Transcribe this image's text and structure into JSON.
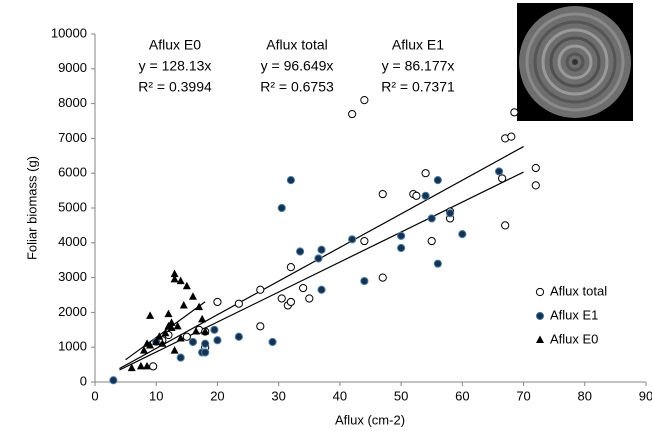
{
  "chart_data": {
    "type": "scatter",
    "x_label": "Aflux (cm-2)",
    "y_label": "Foliar biomass (g)",
    "xlim": [
      0,
      90
    ],
    "xticks": [
      0,
      10,
      20,
      30,
      40,
      50,
      60,
      70,
      80,
      90
    ],
    "ylim": [
      0,
      10000
    ],
    "yticks": [
      0,
      1000,
      2000,
      3000,
      4000,
      5000,
      6000,
      7000,
      8000,
      9000,
      10000
    ],
    "legend": "lower right",
    "series": [
      {
        "name": "Aflux total",
        "marker": "circle-open",
        "color": "#000000",
        "x": [
          9.5,
          11,
          12,
          15,
          17,
          18,
          18,
          20,
          23.5,
          27,
          27,
          30.5,
          31.5,
          32,
          32,
          34,
          35,
          42,
          44,
          44,
          47,
          47,
          52,
          52.5,
          54,
          55,
          58,
          58,
          66.5,
          67,
          67,
          68,
          68.5,
          72,
          72
        ],
        "values": [
          450,
          1200,
          1350,
          1300,
          1500,
          1000,
          1450,
          2300,
          2250,
          2650,
          1600,
          2400,
          2200,
          2300,
          3300,
          2700,
          2400,
          7700,
          8100,
          4050,
          5400,
          3000,
          5400,
          5350,
          6000,
          4050,
          4700,
          4900,
          5850,
          4500,
          7000,
          7050,
          7750,
          6150,
          5650
        ]
      },
      {
        "name": "Aflux E1",
        "marker": "circle-filled",
        "color": "#17324f",
        "x": [
          3,
          10,
          14,
          16,
          17.5,
          18,
          18,
          19.5,
          20,
          23.5,
          29,
          30.5,
          32,
          33.5,
          36.5,
          37,
          37,
          42,
          44,
          50,
          50,
          54,
          55,
          56,
          56,
          58,
          60,
          66
        ],
        "values": [
          50,
          1150,
          700,
          1150,
          850,
          850,
          1100,
          1500,
          1200,
          1300,
          1150,
          5000,
          5800,
          3750,
          3550,
          3800,
          2650,
          4100,
          2900,
          4200,
          3850,
          5350,
          4700,
          5800,
          3400,
          4850,
          4250,
          6050
        ]
      },
      {
        "name": "Aflux E0",
        "marker": "triangle",
        "color": "#000000",
        "x": [
          6,
          7.5,
          8,
          8.5,
          8.5,
          9,
          9,
          10,
          10.5,
          11,
          11.5,
          12,
          12,
          12.5,
          12.5,
          13,
          13,
          13,
          13.5,
          14,
          14,
          14.5,
          15,
          16,
          16.5,
          17,
          17.5,
          18
        ],
        "values": [
          400,
          450,
          900,
          1100,
          450,
          1050,
          1900,
          1150,
          1300,
          1100,
          1400,
          1600,
          1950,
          1550,
          1700,
          3100,
          2950,
          900,
          1600,
          2900,
          1250,
          2200,
          2750,
          2450,
          1450,
          2150,
          1800,
          1450
        ]
      }
    ],
    "trendlines": [
      {
        "slope": 128.13,
        "xlim": [
          5,
          18
        ]
      },
      {
        "slope": 96.649,
        "xlim": [
          4,
          70
        ]
      },
      {
        "slope": 86.177,
        "xlim": [
          4,
          70
        ]
      }
    ],
    "annotations": [
      {
        "lines": [
          "Aflux E0",
          "y = 128.13x",
          "R² = 0.3994"
        ]
      },
      {
        "lines": [
          "Aflux total",
          "y = 96.649x",
          "R² = 0.6753"
        ]
      },
      {
        "lines": [
          "Aflux E1",
          "y = 86.177x",
          "R² = 0.7371"
        ]
      }
    ]
  }
}
